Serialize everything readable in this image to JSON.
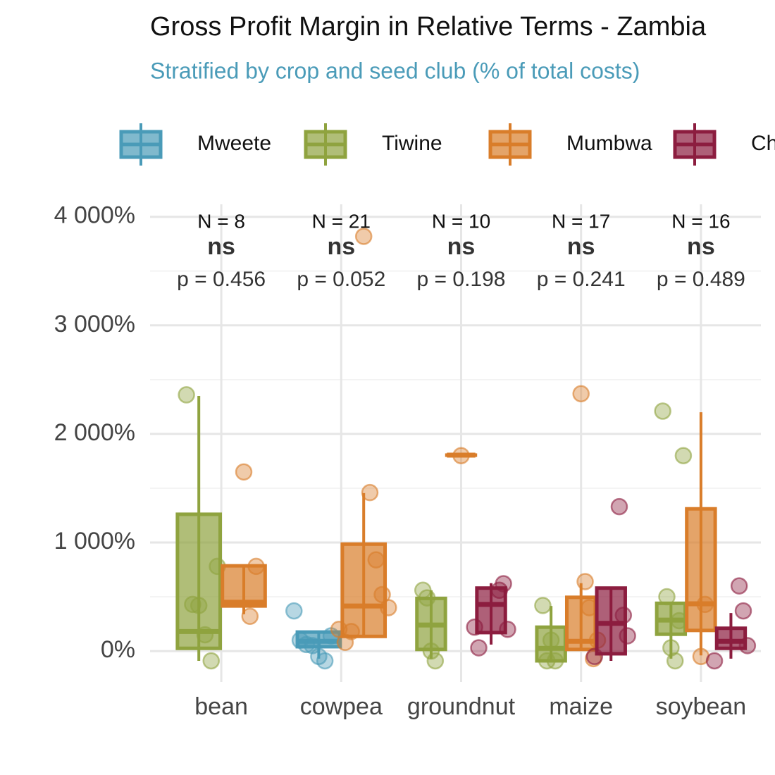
{
  "chart_data": {
    "type": "box",
    "title": "Gross Profit Margin in Relative Terms - Zambia",
    "subtitle": "Stratified by crop and seed club (% of total costs)",
    "categories": [
      "bean",
      "cowpea",
      "groundnut",
      "maize",
      "soybean"
    ],
    "annotations": [
      {
        "n": "N = 8",
        "sig": "ns",
        "p": "p = 0.456"
      },
      {
        "n": "N = 21",
        "sig": "ns",
        "p": "p = 0.052"
      },
      {
        "n": "N = 10",
        "sig": "ns",
        "p": "p = 0.198"
      },
      {
        "n": "N = 17",
        "sig": "ns",
        "p": "p = 0.241"
      },
      {
        "n": "N = 16",
        "sig": "ns",
        "p": "p = 0.489"
      }
    ],
    "ylim": [
      -285,
      4115
    ],
    "yticks": [
      {
        "value": 0,
        "label": "0%"
      },
      {
        "value": 1000,
        "label": "1 000%"
      },
      {
        "value": 2000,
        "label": "2 000%"
      },
      {
        "value": 3000,
        "label": "3 000%"
      },
      {
        "value": 4000,
        "label": "4 000%"
      }
    ],
    "minor_yticks": [
      500,
      1500,
      2500,
      3500
    ],
    "grid": true,
    "legend": "top",
    "series": [
      {
        "name": "Mweete",
        "color": "#4a9bb8",
        "boxes": [
          null,
          {
            "q1": 40,
            "median": 90,
            "q3": 175,
            "whisker_low": -70,
            "whisker_high": 175,
            "points": [
              370,
              100,
              60,
              50,
              -50,
              -90,
              140
            ]
          },
          null,
          null,
          null
        ]
      },
      {
        "name": "Tiwine",
        "color": "#8fa33f",
        "boxes": [
          {
            "q1": 25,
            "median": 180,
            "q3": 1260,
            "whisker_low": -90,
            "whisker_high": 2350,
            "points": [
              2360,
              430,
              420,
              150,
              -90,
              780
            ]
          },
          null,
          {
            "q1": 15,
            "median": 240,
            "q3": 485,
            "whisker_low": -70,
            "whisker_high": 560,
            "points": [
              560,
              490,
              0,
              -90
            ]
          },
          {
            "q1": -90,
            "median": 25,
            "q3": 220,
            "whisker_low": -90,
            "whisker_high": 415,
            "points": [
              420,
              -90,
              100,
              -90
            ]
          },
          {
            "q1": 155,
            "median": 285,
            "q3": 440,
            "whisker_low": -70,
            "whisker_high": 440,
            "points": [
              2210,
              500,
              30,
              -90,
              280,
              1800
            ]
          }
        ]
      },
      {
        "name": "Mumbwa",
        "color": "#d97d2a",
        "boxes": [
          {
            "q1": 415,
            "median": 450,
            "q3": 785,
            "whisker_low": 340,
            "whisker_high": 785,
            "points": [
              1650,
              320,
              780
            ]
          },
          {
            "q1": 135,
            "median": 415,
            "q3": 985,
            "whisker_low": 135,
            "whisker_high": 1455,
            "points": [
              3820,
              1460,
              840,
              520,
              400,
              200,
              80,
              180
            ]
          },
          {
            "q1": 1805,
            "median": 1805,
            "q3": 1805,
            "whisker_low": 1805,
            "whisker_high": 1805,
            "points": [
              1800
            ]
          },
          {
            "q1": 15,
            "median": 90,
            "q3": 495,
            "whisker_low": 15,
            "whisker_high": 625,
            "points": [
              2370,
              640,
              400,
              -70,
              100
            ]
          },
          {
            "q1": 190,
            "median": 435,
            "q3": 1310,
            "whisker_low": -40,
            "whisker_high": 2200,
            "points": [
              -50,
              430
            ]
          }
        ]
      },
      {
        "name": "Ch",
        "color": "#8c1d3f",
        "boxes": [
          null,
          null,
          {
            "q1": 170,
            "median": 430,
            "q3": 580,
            "whisker_low": 60,
            "whisker_high": 625,
            "points": [
              560,
              620,
              200,
              220,
              30
            ]
          },
          {
            "q1": -25,
            "median": 255,
            "q3": 580,
            "whisker_low": -90,
            "whisker_high": 580,
            "points": [
              1330,
              330,
              140,
              -50
            ]
          },
          {
            "q1": 25,
            "median": 90,
            "q3": 210,
            "whisker_low": -70,
            "whisker_high": 350,
            "points": [
              600,
              370,
              50,
              -90
            ]
          }
        ]
      }
    ]
  }
}
